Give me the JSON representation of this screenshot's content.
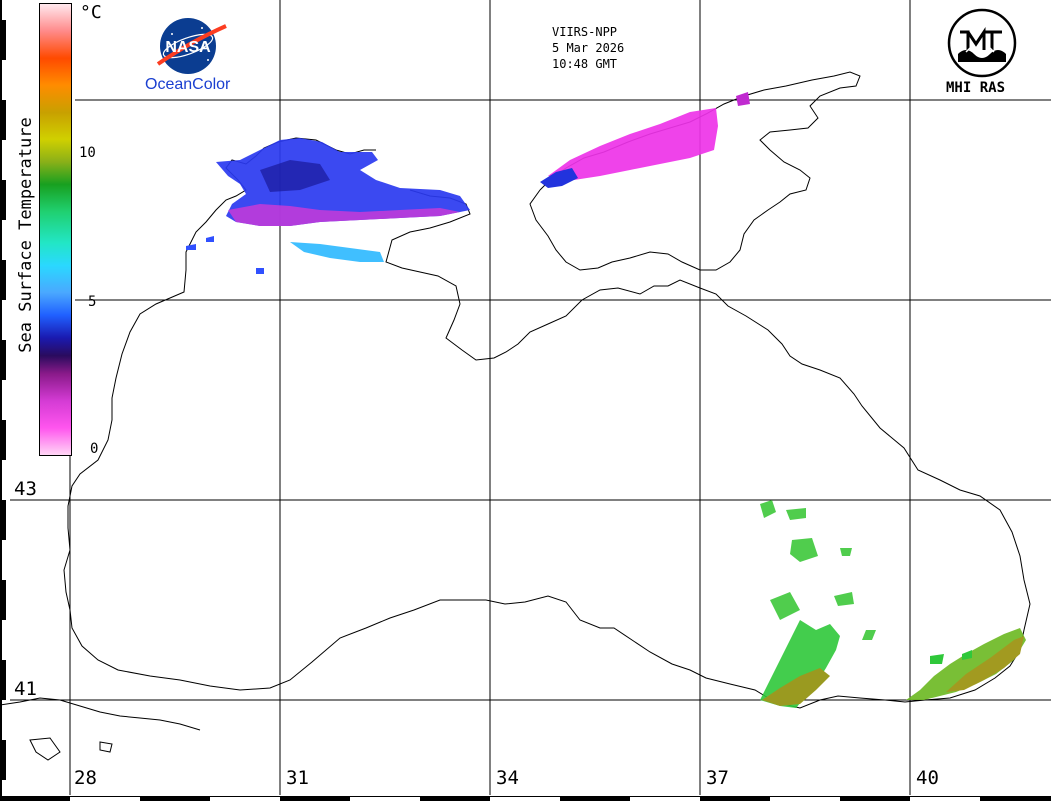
{
  "satellite": {
    "sensor": "VIIRS-NPP",
    "date": "5 Mar 2026",
    "time": "10:48 GMT"
  },
  "colorbar": {
    "title": "Sea Surface Temperature",
    "unit": "°C",
    "ticks": [
      "0",
      "5",
      "10"
    ],
    "min": 0,
    "max": 15
  },
  "logos": {
    "nasa_text": "NASA",
    "oceancolor": "OceanColor",
    "mhi": "MHI RAS"
  },
  "grid": {
    "latitudes": [
      {
        "label": "43",
        "value": 43
      },
      {
        "label": "41",
        "value": 41
      }
    ],
    "longitudes": [
      {
        "label": "28",
        "value": 28
      },
      {
        "label": "31",
        "value": 31
      },
      {
        "label": "34",
        "value": 34
      },
      {
        "label": "37",
        "value": 37
      },
      {
        "label": "40",
        "value": 40
      }
    ]
  },
  "colors": {
    "coast": "#000000",
    "grid": "#000000",
    "cold": "#ff33ee",
    "cool": "#2250ff",
    "mild": "#2bd8ff",
    "warm": "#33c833",
    "olive": "#9a9a20"
  }
}
